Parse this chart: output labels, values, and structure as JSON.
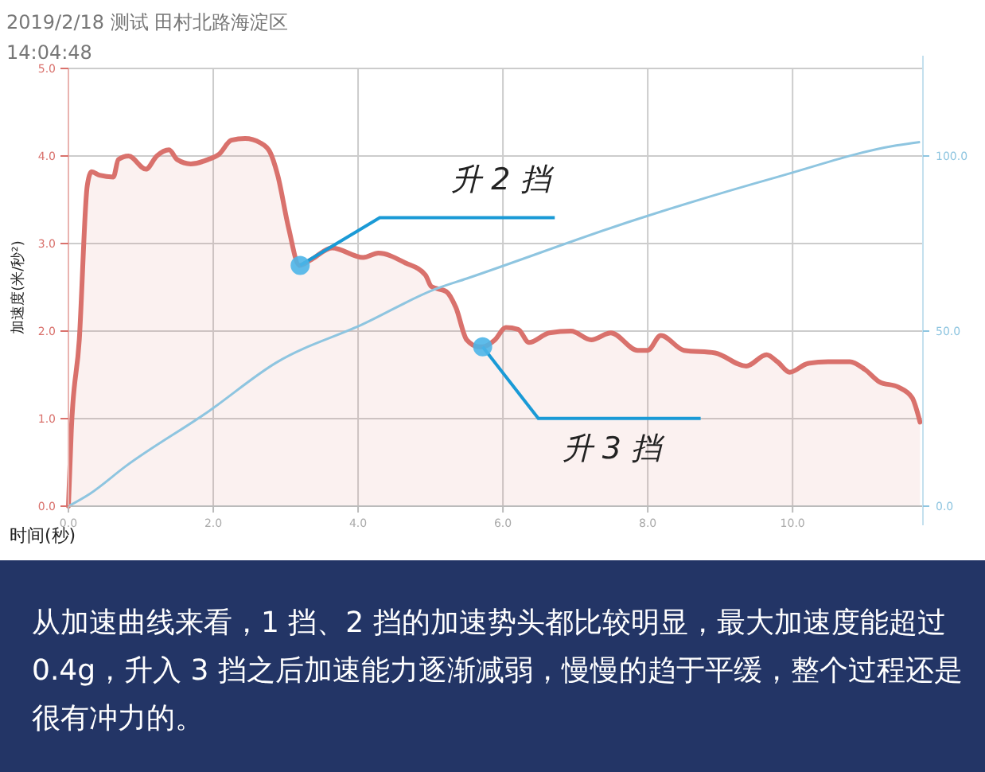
{
  "chart_data": {
    "type": "area",
    "title": "2019/2/18 测试 田村北路海淀区",
    "subtitle": "14:04:48",
    "xlabel": "时间(秒)",
    "ylabel": "加速度(米/秒²)",
    "xlim": [
      0,
      11.8
    ],
    "xticks": [
      {
        "value": 0,
        "label": "0.0"
      },
      {
        "value": 2,
        "label": "2.0"
      },
      {
        "value": 4,
        "label": "4.0"
      },
      {
        "value": 6,
        "label": "6.0"
      },
      {
        "value": 8,
        "label": "8.0"
      },
      {
        "value": 10,
        "label": "10.0"
      }
    ],
    "ylim": [
      0,
      5
    ],
    "yticks": [
      {
        "value": 0,
        "label": "0.0"
      },
      {
        "value": 1,
        "label": "1.0"
      },
      {
        "value": 2,
        "label": "2.0"
      },
      {
        "value": 3,
        "label": "3.0"
      },
      {
        "value": 4,
        "label": "4.0"
      },
      {
        "value": 5,
        "label": "5.0"
      }
    ],
    "y2lim": [
      0,
      125
    ],
    "y2ticks": [
      {
        "value": 0,
        "label": "0.0"
      },
      {
        "value": 50,
        "label": "50.0"
      },
      {
        "value": 100,
        "label": "100.0"
      }
    ],
    "grid": true,
    "marker": "none",
    "series": [
      {
        "color": "#d9716c",
        "x": [
          0,
          0.04,
          0.15,
          0.26,
          0.32,
          0.43,
          0.62,
          0.69,
          0.83,
          1.07,
          1.22,
          1.39,
          1.5,
          1.69,
          1.93,
          2.08,
          2.25,
          2.44,
          2.65,
          2.78,
          2.89,
          3.04,
          3.19,
          3.36,
          3.64,
          4.07,
          4.28,
          4.65,
          4.93,
          5.01,
          5.22,
          5.35,
          5.5,
          5.67,
          5.72,
          5.89,
          6.04,
          6.21,
          6.36,
          6.64,
          6.94,
          7.22,
          7.49,
          7.86,
          8.0,
          8.18,
          8.5,
          8.93,
          9.36,
          9.64,
          9.79,
          9.96,
          10.21,
          10.49,
          10.79,
          11.0,
          11.2,
          11.46,
          11.65,
          11.76
        ],
        "values": [
          0,
          0.87,
          1.9,
          3.66,
          3.82,
          3.78,
          3.76,
          3.96,
          4.0,
          3.85,
          4.0,
          4.07,
          3.96,
          3.91,
          3.96,
          4.02,
          4.18,
          4.2,
          4.15,
          4.05,
          3.78,
          3.18,
          2.75,
          2.82,
          2.95,
          2.84,
          2.89,
          2.78,
          2.64,
          2.51,
          2.45,
          2.27,
          1.9,
          1.82,
          1.82,
          1.9,
          2.04,
          2.02,
          1.87,
          1.98,
          2.0,
          1.9,
          1.98,
          1.78,
          1.78,
          1.95,
          1.78,
          1.75,
          1.6,
          1.73,
          1.65,
          1.53,
          1.63,
          1.65,
          1.65,
          1.56,
          1.42,
          1.36,
          1.24,
          0.96
        ]
      },
      {
        "type": "line",
        "axis": "y2",
        "color": "#8ec5e0",
        "x": [
          0,
          0.3,
          0.79,
          1.93,
          2.87,
          4.07,
          5.07,
          5.5,
          7.86,
          9.79,
          11.43,
          11.76
        ],
        "values": [
          0,
          3.6,
          11.4,
          27,
          41,
          52,
          62,
          65,
          82,
          94,
          103,
          104
        ]
      }
    ],
    "annotations": [
      {
        "text": "升 2 挡",
        "x": 3.2,
        "y": 2.75
      },
      {
        "text": "升 3 挡",
        "x": 5.72,
        "y": 1.82
      },
      "从加速曲线来看，1 挡、2 挡的加速势头都比较明显，最大加速度能超过 0.4g，升入 3 挡之后加速能力逐渐减弱，慢慢的趋于平缓，整个过程还是很有冲力的。"
    ]
  }
}
